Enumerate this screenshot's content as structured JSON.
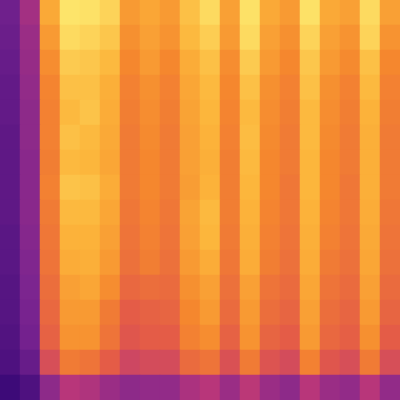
{
  "chart_data": {
    "type": "heatmap",
    "tick_labels": false,
    "cells": [
      [
        0.18,
        0.3,
        0.75,
        0.93,
        0.92,
        0.88,
        0.7,
        0.74,
        0.7,
        0.82,
        0.9,
        0.72,
        0.92,
        0.75,
        0.7,
        0.92,
        0.75,
        0.72,
        0.9,
        0.72
      ],
      [
        0.17,
        0.28,
        0.7,
        0.9,
        0.88,
        0.84,
        0.67,
        0.72,
        0.68,
        0.8,
        0.86,
        0.7,
        0.9,
        0.72,
        0.67,
        0.88,
        0.72,
        0.68,
        0.88,
        0.68
      ],
      [
        0.16,
        0.27,
        0.66,
        0.85,
        0.84,
        0.8,
        0.64,
        0.7,
        0.64,
        0.76,
        0.82,
        0.66,
        0.85,
        0.7,
        0.64,
        0.84,
        0.7,
        0.65,
        0.82,
        0.64
      ],
      [
        0.15,
        0.26,
        0.63,
        0.82,
        0.82,
        0.77,
        0.62,
        0.67,
        0.62,
        0.74,
        0.8,
        0.64,
        0.82,
        0.67,
        0.62,
        0.82,
        0.67,
        0.62,
        0.8,
        0.62
      ],
      [
        0.15,
        0.25,
        0.62,
        0.8,
        0.83,
        0.76,
        0.61,
        0.66,
        0.61,
        0.73,
        0.79,
        0.63,
        0.8,
        0.66,
        0.61,
        0.8,
        0.66,
        0.61,
        0.78,
        0.61
      ],
      [
        0.14,
        0.25,
        0.62,
        0.82,
        0.8,
        0.75,
        0.6,
        0.65,
        0.6,
        0.72,
        0.78,
        0.62,
        0.81,
        0.65,
        0.6,
        0.8,
        0.65,
        0.6,
        0.77,
        0.6
      ],
      [
        0.14,
        0.24,
        0.61,
        0.8,
        0.79,
        0.74,
        0.6,
        0.64,
        0.6,
        0.72,
        0.77,
        0.61,
        0.8,
        0.64,
        0.6,
        0.79,
        0.64,
        0.6,
        0.77,
        0.6
      ],
      [
        0.14,
        0.24,
        0.62,
        0.83,
        0.82,
        0.76,
        0.6,
        0.64,
        0.6,
        0.71,
        0.78,
        0.61,
        0.79,
        0.64,
        0.59,
        0.79,
        0.64,
        0.59,
        0.77,
        0.6
      ],
      [
        0.14,
        0.24,
        0.6,
        0.8,
        0.8,
        0.74,
        0.59,
        0.63,
        0.59,
        0.73,
        0.8,
        0.61,
        0.78,
        0.63,
        0.59,
        0.78,
        0.63,
        0.59,
        0.76,
        0.59
      ],
      [
        0.13,
        0.23,
        0.59,
        0.78,
        0.78,
        0.72,
        0.58,
        0.62,
        0.58,
        0.72,
        0.79,
        0.6,
        0.77,
        0.62,
        0.58,
        0.77,
        0.62,
        0.58,
        0.75,
        0.58
      ],
      [
        0.13,
        0.22,
        0.58,
        0.76,
        0.77,
        0.7,
        0.57,
        0.61,
        0.57,
        0.7,
        0.76,
        0.59,
        0.76,
        0.61,
        0.57,
        0.76,
        0.6,
        0.57,
        0.74,
        0.57
      ],
      [
        0.12,
        0.21,
        0.56,
        0.72,
        0.74,
        0.66,
        0.54,
        0.56,
        0.55,
        0.67,
        0.72,
        0.57,
        0.72,
        0.58,
        0.55,
        0.74,
        0.58,
        0.55,
        0.72,
        0.55
      ],
      [
        0.12,
        0.2,
        0.54,
        0.7,
        0.7,
        0.6,
        0.5,
        0.52,
        0.53,
        0.64,
        0.7,
        0.55,
        0.7,
        0.56,
        0.53,
        0.72,
        0.56,
        0.53,
        0.7,
        0.53
      ],
      [
        0.11,
        0.19,
        0.52,
        0.68,
        0.68,
        0.58,
        0.48,
        0.5,
        0.5,
        0.62,
        0.66,
        0.52,
        0.68,
        0.53,
        0.5,
        0.7,
        0.54,
        0.51,
        0.67,
        0.5
      ],
      [
        0.1,
        0.16,
        0.45,
        0.6,
        0.58,
        0.5,
        0.42,
        0.44,
        0.44,
        0.55,
        0.58,
        0.46,
        0.6,
        0.47,
        0.44,
        0.62,
        0.48,
        0.45,
        0.6,
        0.45
      ],
      [
        0.06,
        0.1,
        0.25,
        0.35,
        0.33,
        0.28,
        0.25,
        0.26,
        0.26,
        0.32,
        0.35,
        0.28,
        0.36,
        0.28,
        0.25,
        0.35,
        0.28,
        0.26,
        0.35,
        0.26
      ]
    ]
  }
}
